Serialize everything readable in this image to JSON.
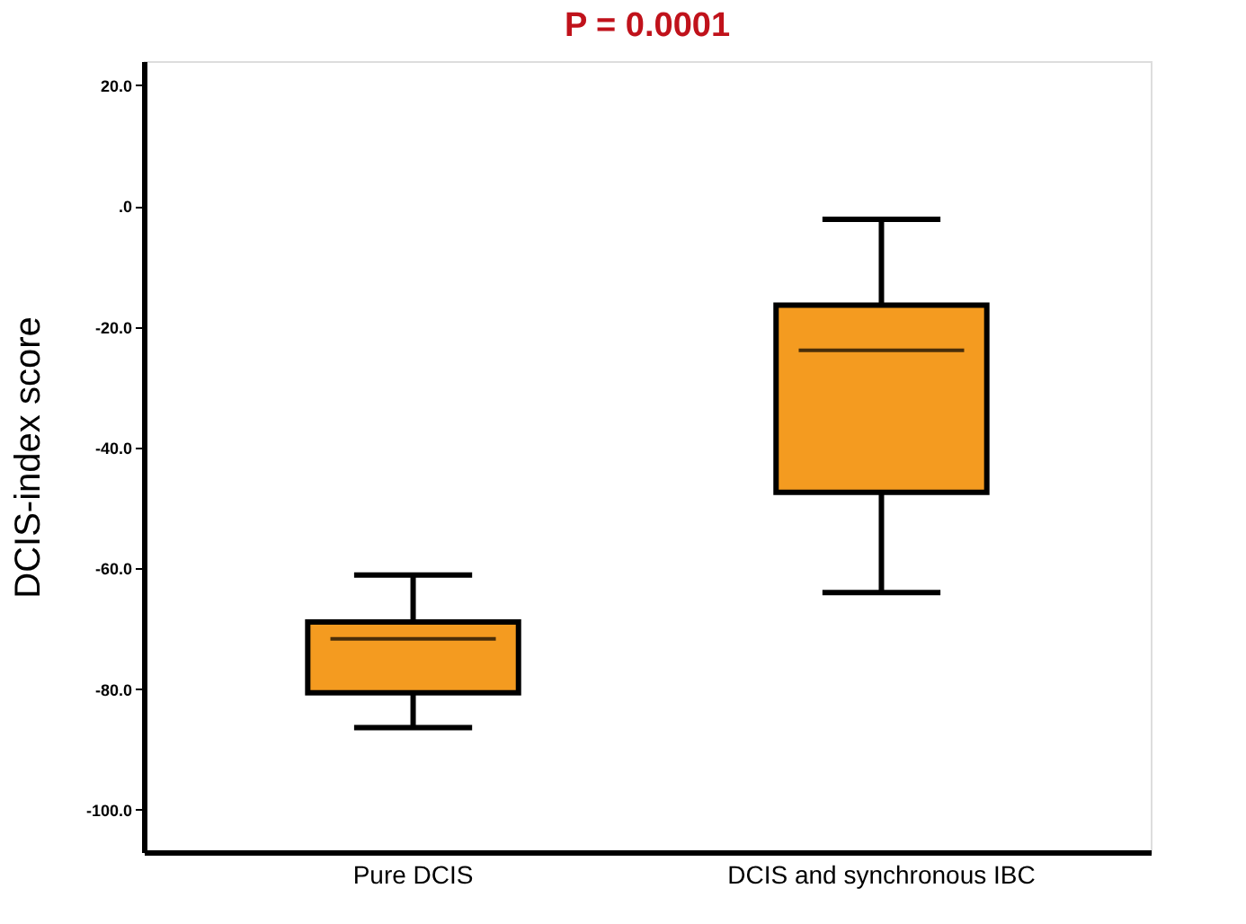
{
  "chart_data": {
    "type": "box",
    "ylabel": "DCIS-index score",
    "categories": [
      "Pure DCIS",
      "DCIS and synchronous IBC"
    ],
    "boxes": [
      {
        "low": -86.4,
        "q1": -80.6,
        "median": -71.7,
        "q3": -68.9,
        "high": -61.1
      },
      {
        "low": -64.0,
        "q1": -47.4,
        "median": -23.9,
        "q3": -16.4,
        "high": -2.2
      }
    ],
    "color": "#f49b20",
    "ylim": [
      -107,
      24
    ],
    "yticks": [
      {
        "value": 20,
        "label": "20.0"
      },
      {
        "value": 0,
        "label": ".0"
      },
      {
        "value": -20,
        "label": "-20.0"
      },
      {
        "value": -40,
        "label": "-40.0"
      },
      {
        "value": -60,
        "label": "-60.0"
      },
      {
        "value": -80,
        "label": "-80.0"
      },
      {
        "value": -100,
        "label": "-100.0"
      }
    ],
    "grid": false,
    "annotations": [
      "P = 0.0001"
    ]
  }
}
